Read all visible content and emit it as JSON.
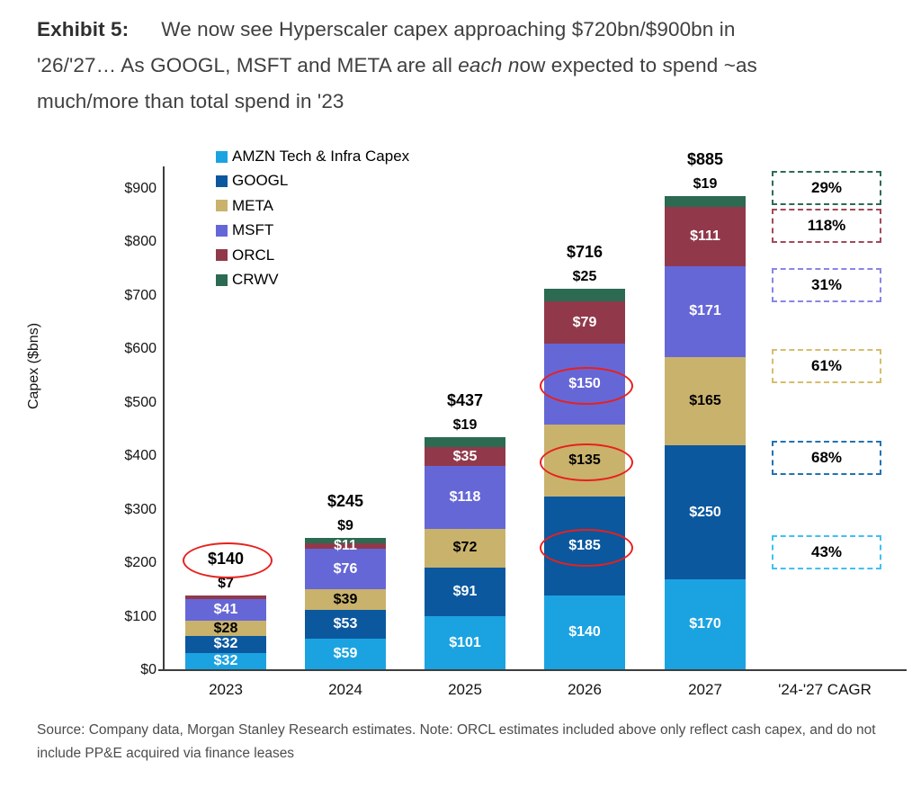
{
  "title": {
    "exhibit_label": "Exhibit 5:",
    "line1": "We now see Hyperscaler capex approaching $720bn/$900bn in",
    "line2_pre": "'26/'27… As GOOGL, MSFT and META are all ",
    "line2_italic": "each n",
    "line2_post": "ow expected to spend ~as",
    "line3": "much/more than total spend in '23"
  },
  "source": {
    "line1": "Source: Company data, Morgan Stanley Research estimates. Note: ORCL estimates included above only reflect cash capex, and do not",
    "line2": "include PP&E acquired via finance leases"
  },
  "chart_data": {
    "type": "bar",
    "stacked": true,
    "title": "Hyperscaler capex by company",
    "xlabel": "",
    "ylabel": "Capex ($bns)",
    "ylim": [
      0,
      940
    ],
    "grid": false,
    "legend_position": "top-left-inside",
    "yticks": [
      {
        "value": 0,
        "label": "$0"
      },
      {
        "value": 100,
        "label": "$100"
      },
      {
        "value": 200,
        "label": "$200"
      },
      {
        "value": 300,
        "label": "$300"
      },
      {
        "value": 400,
        "label": "$400"
      },
      {
        "value": 500,
        "label": "$500"
      },
      {
        "value": 600,
        "label": "$600"
      },
      {
        "value": 700,
        "label": "$700"
      },
      {
        "value": 800,
        "label": "$800"
      },
      {
        "value": 900,
        "label": "$900"
      }
    ],
    "categories": [
      "2023",
      "2024",
      "2025",
      "2026",
      "2027"
    ],
    "cagr_category": "'24-'27 CAGR",
    "series": [
      {
        "key": "AMZN",
        "name": "AMZN Tech & Infra Capex",
        "color": "#1ba3e1",
        "label_color": "#ffffff",
        "values": [
          32,
          59,
          101,
          140,
          170
        ]
      },
      {
        "key": "GOOGL",
        "name": "GOOGL",
        "color": "#0b589e",
        "label_color": "#ffffff",
        "values": [
          32,
          53,
          91,
          185,
          250
        ]
      },
      {
        "key": "META",
        "name": "META",
        "color": "#c9b26c",
        "label_color": "#000000",
        "values": [
          28,
          39,
          72,
          135,
          165
        ]
      },
      {
        "key": "MSFT",
        "name": "MSFT",
        "color": "#6667d6",
        "label_color": "#ffffff",
        "values": [
          41,
          76,
          118,
          150,
          171
        ]
      },
      {
        "key": "ORCL",
        "name": "ORCL",
        "color": "#91394b",
        "label_color": "#ffffff",
        "values": [
          7,
          11,
          35,
          79,
          111
        ]
      },
      {
        "key": "CRWV",
        "name": "CRWV",
        "color": "#2c6a52",
        "label_color": "#000000",
        "values": [
          0,
          9,
          19,
          25,
          19
        ]
      }
    ],
    "totals": [
      "$140",
      "$245",
      "$437",
      "$716",
      "$885"
    ],
    "above_bar_labels": [
      "$7",
      "$9",
      "$19",
      "$25",
      "$19"
    ],
    "hide_inside_labels": [
      {
        "category": "2023",
        "series": "ORCL"
      }
    ],
    "circles": [
      {
        "category": "2023",
        "target": "total"
      },
      {
        "category": "2026",
        "series": "GOOGL"
      },
      {
        "category": "2026",
        "series": "META"
      },
      {
        "category": "2026",
        "series": "MSFT"
      }
    ],
    "circle_color": "#e8201e",
    "cagr_boxes": [
      {
        "pct": "29%",
        "series": "CRWV",
        "border": "#2d6b53"
      },
      {
        "pct": "118%",
        "series": "ORCL",
        "border": "#a04a59"
      },
      {
        "pct": "31%",
        "series": "MSFT",
        "border": "#8886e5"
      },
      {
        "pct": "61%",
        "series": "META",
        "border": "#d5bd6e"
      },
      {
        "pct": "68%",
        "series": "GOOGL",
        "border": "#2173b3"
      },
      {
        "pct": "43%",
        "series": "AMZN",
        "border": "#41c0f0"
      }
    ]
  }
}
